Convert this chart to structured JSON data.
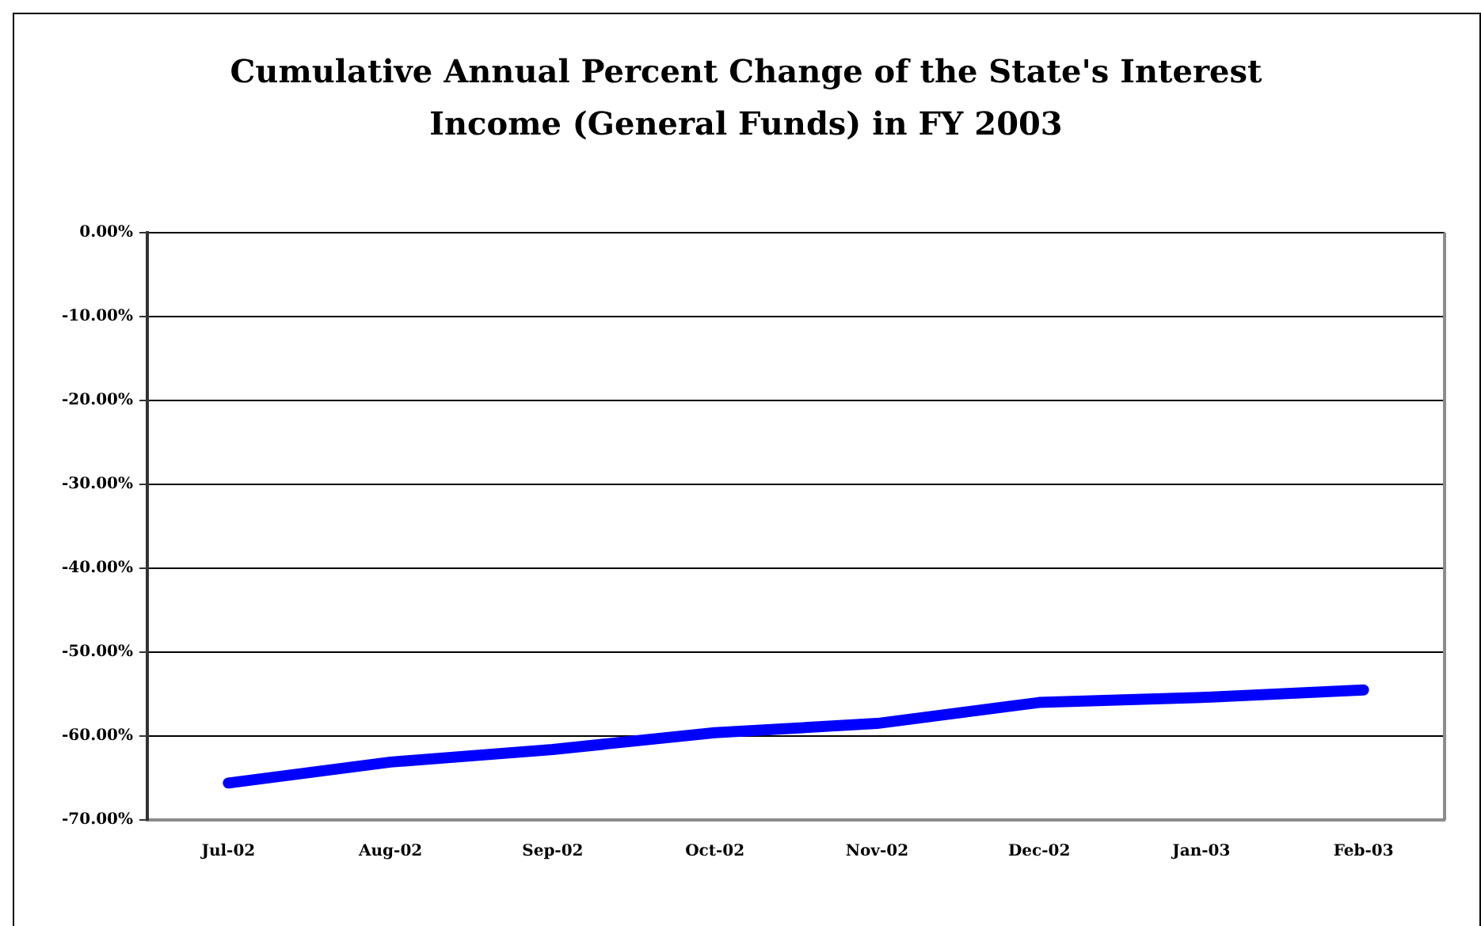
{
  "chart_data": {
    "type": "line",
    "title": "Cumulative Annual Percent Change of the State's Interest Income (General Funds) in FY 2003",
    "categories": [
      "Jul-02",
      "Aug-02",
      "Sep-02",
      "Oct-02",
      "Nov-02",
      "Dec-02",
      "Jan-03",
      "Feb-03"
    ],
    "series": [
      {
        "color": "#0000ff",
        "values": [
          -65.6,
          -63.1,
          -61.6,
          -59.6,
          -58.5,
          -56.0,
          -55.4,
          -54.5
        ]
      }
    ],
    "ylim": [
      -70,
      0
    ],
    "yticks": [
      {
        "value": -70,
        "label": "-70.00%"
      },
      {
        "value": -60,
        "label": "-60.00%"
      },
      {
        "value": -50,
        "label": "-50.00%"
      },
      {
        "value": -40,
        "label": "-40.00%"
      },
      {
        "value": -30,
        "label": "-30.00%"
      },
      {
        "value": -20,
        "label": "-20.00%"
      },
      {
        "value": -10,
        "label": "-10.00%"
      },
      {
        "value": 0,
        "label": "0.00%"
      }
    ],
    "grid": "y",
    "marker": "none"
  }
}
